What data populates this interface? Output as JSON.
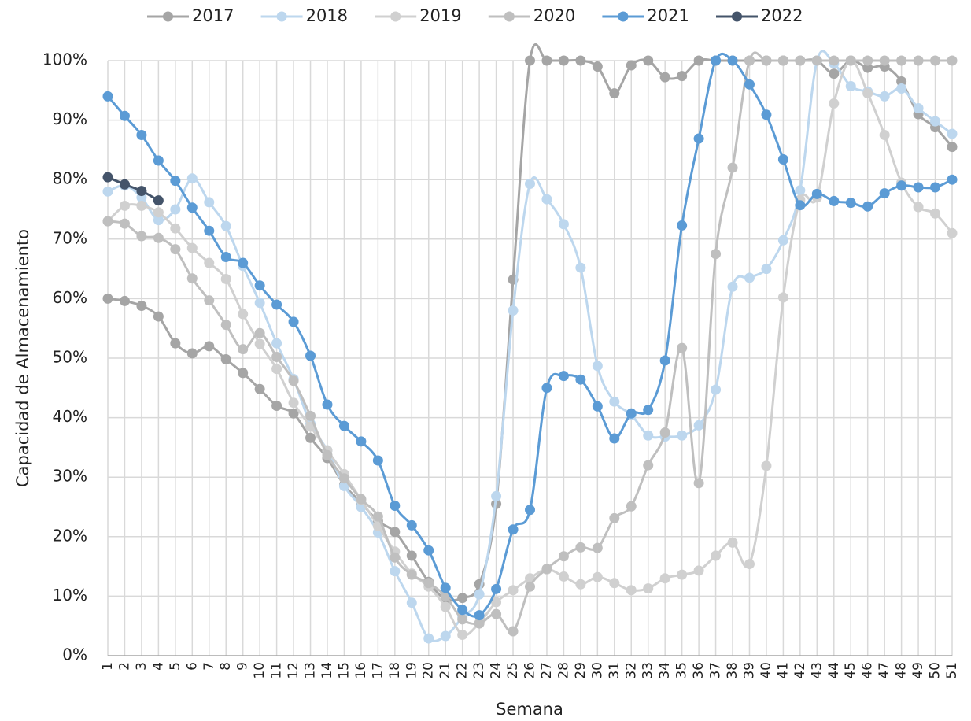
{
  "chart_data": {
    "type": "line",
    "x_label": "Semana",
    "y_label": "Capacidad de Almacenamiento",
    "categories": [
      "1",
      "2",
      "3",
      "4",
      "5",
      "6",
      "7",
      "8",
      "9",
      "10",
      "11",
      "12",
      "13",
      "14",
      "15",
      "16",
      "17",
      "18",
      "19",
      "20",
      "21",
      "22",
      "23",
      "24",
      "25",
      "26",
      "27",
      "28",
      "29",
      "30",
      "31",
      "32",
      "33",
      "34",
      "35",
      "36",
      "37",
      "38",
      "39",
      "40",
      "41",
      "42",
      "43",
      "44",
      "45",
      "46",
      "47",
      "48",
      "49",
      "50",
      "51"
    ],
    "ylim": [
      0,
      100
    ],
    "yticks": [
      {
        "value": 0,
        "label": "0%"
      },
      {
        "value": 10,
        "label": "10%"
      },
      {
        "value": 20,
        "label": "20%"
      },
      {
        "value": 30,
        "label": "30%"
      },
      {
        "value": 40,
        "label": "40%"
      },
      {
        "value": 50,
        "label": "50%"
      },
      {
        "value": 60,
        "label": "60%"
      },
      {
        "value": 70,
        "label": "70%"
      },
      {
        "value": 80,
        "label": "80%"
      },
      {
        "value": 90,
        "label": "90%"
      },
      {
        "value": 100,
        "label": "100%"
      }
    ],
    "grid": true,
    "legend": "top",
    "series": [
      {
        "name": "2017",
        "color": "#a5a5a5",
        "values": [
          60,
          59.6,
          58.8,
          57,
          52.5,
          50.8,
          52,
          49.8,
          47.5,
          44.8,
          42,
          40.7,
          36.6,
          33.2,
          28.7,
          25.7,
          22.6,
          20.8,
          16.8,
          12.4,
          9.5,
          9.7,
          12,
          25.5,
          63.2,
          100,
          100,
          100,
          100,
          99,
          94.5,
          99.2,
          100,
          97.2,
          97.4,
          100,
          100,
          100,
          100,
          100,
          100,
          100,
          100,
          97.8,
          100,
          98.8,
          99,
          96.5,
          91,
          88.8,
          85.5
        ]
      },
      {
        "name": "2018",
        "color": "#bdd7ee",
        "values": [
          78,
          79,
          77,
          73.2,
          75,
          80.2,
          76.2,
          72.2,
          65.5,
          59.3,
          52.5,
          46.5,
          39,
          34.5,
          28.5,
          25,
          20.7,
          14.2,
          8.9,
          2.9,
          3.3,
          6.5,
          10.3,
          26.8,
          58,
          79.3,
          76.7,
          72.5,
          65.2,
          48.7,
          42.7,
          40.5,
          37,
          36.8,
          37,
          38.7,
          44.7,
          62,
          63.5,
          65,
          69.8,
          78.2,
          100,
          99.5,
          95.7,
          94.8,
          94,
          95.3,
          92,
          89.8,
          87.7
        ]
      },
      {
        "name": "2019",
        "color": "#d0d0d0",
        "values": [
          73,
          75.6,
          75.6,
          74.5,
          71.8,
          68.5,
          66,
          63.3,
          57.4,
          52.4,
          48.2,
          42.5,
          38.5,
          34.5,
          30.5,
          26.2,
          21.8,
          17.5,
          13.8,
          11.6,
          8.2,
          3.5,
          5.5,
          9,
          11,
          13,
          14.5,
          13.3,
          12,
          13.2,
          12.2,
          11,
          11.3,
          13,
          13.6,
          14.3,
          16.8,
          19,
          15.4,
          31.9,
          60.2,
          76.6,
          77,
          92.8,
          100,
          94.5,
          87.5,
          79.5,
          75.4,
          74.3,
          71
        ]
      },
      {
        "name": "2020",
        "color": "#bfbfbf",
        "values": [
          73,
          72.6,
          70.5,
          70.2,
          68.3,
          63.4,
          59.7,
          55.6,
          51.5,
          54.2,
          50.2,
          46.2,
          40.3,
          33.7,
          29.8,
          26.3,
          23.4,
          16.5,
          13.6,
          12.2,
          10,
          6.1,
          5.4,
          7,
          4.1,
          11.6,
          14.6,
          16.7,
          18.2,
          18.1,
          23.1,
          25.1,
          32,
          37.5,
          51.7,
          29,
          67.5,
          82,
          100,
          100,
          100,
          100,
          100,
          100,
          100,
          100,
          100,
          100,
          100,
          100,
          100
        ]
      },
      {
        "name": "2021",
        "color": "#5b9bd5",
        "values": [
          94,
          90.7,
          87.5,
          83.2,
          79.8,
          75.3,
          71.4,
          67,
          66,
          62.2,
          59,
          56.1,
          50.4,
          42.2,
          38.6,
          36,
          32.8,
          25.2,
          21.9,
          17.7,
          11.4,
          7.7,
          6.8,
          11.2,
          21.2,
          24.5,
          45,
          47,
          46.4,
          41.9,
          36.5,
          40.7,
          41.3,
          49.6,
          72.3,
          86.9,
          100,
          100,
          96,
          90.9,
          83.4,
          75.7,
          77.6,
          76.4,
          76.1,
          75.5,
          77.7,
          79,
          78.7,
          78.7,
          80
        ]
      },
      {
        "name": "2022",
        "color": "#44546a",
        "values": [
          80.4,
          79.2,
          78.1,
          76.5,
          null,
          null,
          null,
          null,
          null,
          null,
          null,
          null,
          null,
          null,
          null,
          null,
          null,
          null,
          null,
          null,
          null,
          null,
          null,
          null,
          null,
          null,
          null,
          null,
          null,
          null,
          null,
          null,
          null,
          null,
          null,
          null,
          null,
          null,
          null,
          null,
          null,
          null,
          null,
          null,
          null,
          null,
          null,
          null,
          null,
          null,
          null
        ]
      }
    ]
  }
}
